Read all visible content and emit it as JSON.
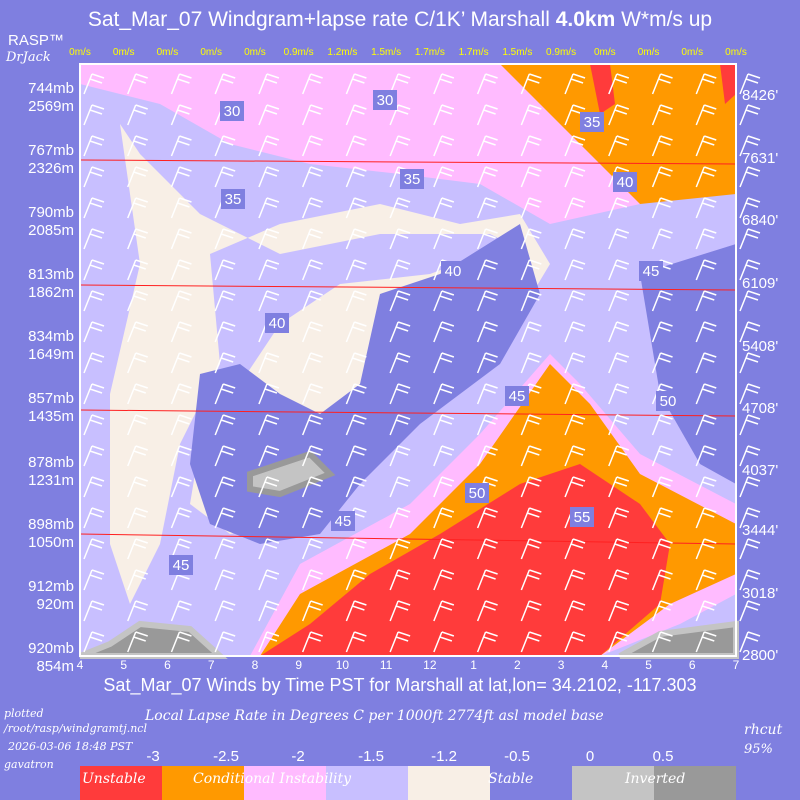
{
  "header": {
    "title_prefix": "Sat_Mar_07 Windgram+lapse rate C/1K’  Marshall ",
    "title_bold": "4.0km",
    "title_suffix": "  W*m/s up",
    "brand": "RASP™",
    "author": "DrJack"
  },
  "chart_data": {
    "type": "heatmap",
    "title": "Sat_Mar_07 Windgram+lapse rate C/1K’  Marshall 4.0km  W*m/s up",
    "xlabel": "Sat_Mar_07 Winds by Time PST for Marshall at lat,lon= 34.2102, -117.303",
    "x_ticks": [
      "4",
      "5",
      "6",
      "7",
      "8",
      "9",
      "10",
      "11",
      "12",
      "1",
      "2",
      "3",
      "4",
      "5",
      "6",
      "7"
    ],
    "w_star": [
      "0m/s",
      "0m/s",
      "0m/s",
      "0m/s",
      "0m/s",
      "0.9m/s",
      "1.2m/s",
      "1.5m/s",
      "1.7m/s",
      "1.7m/s",
      "1.5m/s",
      "0.9m/s",
      "0m/s",
      "0m/s",
      "0m/s",
      "0m/s"
    ],
    "left_axis": [
      {
        "mb": "744mb",
        "m": "2569m"
      },
      {
        "mb": "767mb",
        "m": "2326m"
      },
      {
        "mb": "790mb",
        "m": "2085m"
      },
      {
        "mb": "813mb",
        "m": "1862m"
      },
      {
        "mb": "834mb",
        "m": "1649m"
      },
      {
        "mb": "857mb",
        "m": "1435m"
      },
      {
        "mb": "878mb",
        "m": "1231m"
      },
      {
        "mb": "898mb",
        "m": "1050m"
      },
      {
        "mb": "912mb",
        "m": "920m"
      },
      {
        "mb": "920mb",
        "m": "854m"
      }
    ],
    "right_axis": [
      "8426'",
      "7631'",
      "6840'",
      "6109'",
      "5408'",
      "4708'",
      "4037'",
      "3444'",
      "3018'",
      "2800'"
    ],
    "contour_labels": [
      "30",
      "30",
      "35",
      "35",
      "35",
      "40",
      "40",
      "40",
      "45",
      "45",
      "45",
      "45",
      "50",
      "50",
      "55"
    ]
  },
  "legend": {
    "title": "Local Lapse Rate in Degrees C per 1000ft  2774ft asl model base",
    "ticks": [
      "-3",
      "-2.5",
      "-2",
      "-1.5",
      "-1.2",
      "-0.5",
      "0",
      "0.5"
    ],
    "labels": {
      "unstable": "Unstable",
      "conditional": "Conditional Instability",
      "stable": "Stable",
      "inverted": "Inverted"
    },
    "colors": [
      "#ff3b3b",
      "#ff9900",
      "#ffbbff",
      "#c8bfff",
      "#f8efe6",
      "#7f7fe0",
      "#c4c4c4",
      "#999999"
    ]
  },
  "footer": {
    "plotted": "plotted",
    "path": "/root/rasp/windgramtj.ncl",
    "date": "2026-03-06 18:48 PST",
    "host": "gavatron",
    "rhcut": "rhcut",
    "rhval": "95%"
  }
}
